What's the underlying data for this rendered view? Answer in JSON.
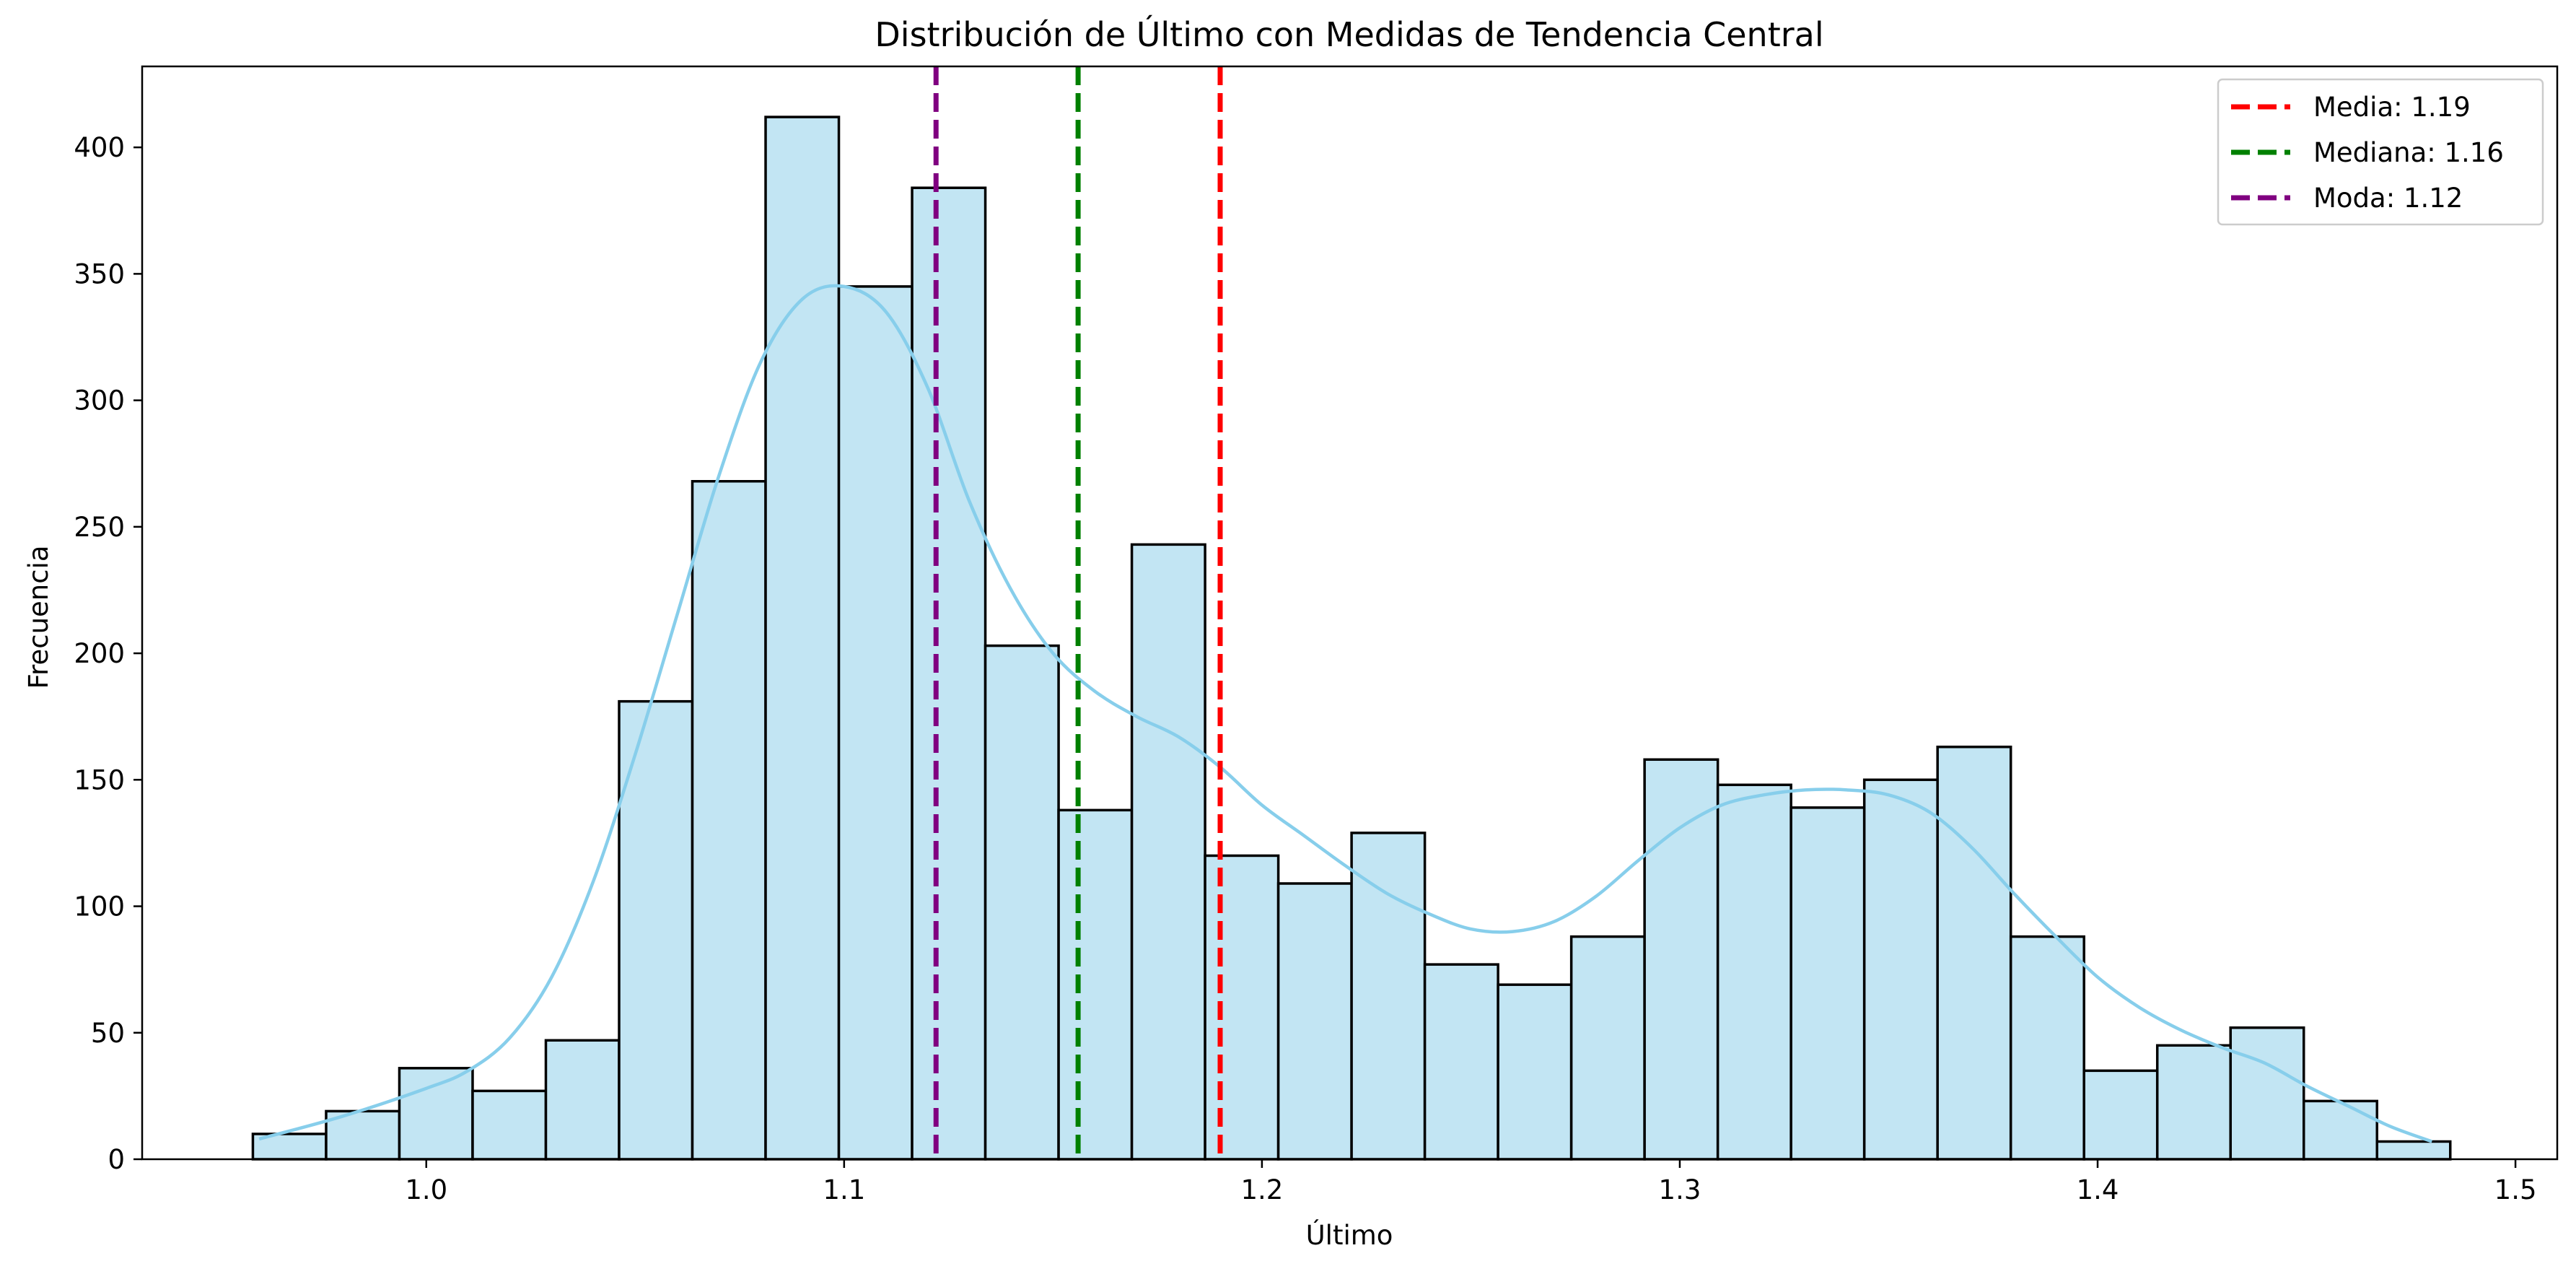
{
  "chart_data": {
    "type": "bar",
    "title": "Distribución de Último con Medidas de Tendencia Central",
    "xlabel": "Último",
    "ylabel": "Frecuencia",
    "xlim": [
      0.932,
      1.51
    ],
    "ylim": [
      0,
      432
    ],
    "xticks": [
      1.0,
      1.1,
      1.2,
      1.3,
      1.4,
      1.5
    ],
    "xtick_labels": [
      "1.0",
      "1.1",
      "1.2",
      "1.3",
      "1.4",
      "1.5"
    ],
    "yticks": [
      0,
      50,
      100,
      150,
      200,
      250,
      300,
      350,
      400
    ],
    "ytick_labels": [
      "0",
      "50",
      "100",
      "150",
      "200",
      "250",
      "300",
      "350",
      "400"
    ],
    "bins": {
      "start": 0.9585,
      "width": 0.01753,
      "counts": [
        10,
        19,
        36,
        27,
        47,
        181,
        268,
        412,
        345,
        384,
        203,
        138,
        243,
        120,
        109,
        129,
        77,
        69,
        88,
        158,
        148,
        139,
        150,
        163,
        88,
        35,
        45,
        52,
        23,
        7
      ]
    },
    "kde": {
      "x": [
        0.96,
        0.98,
        1.0,
        1.01,
        1.02,
        1.03,
        1.04,
        1.05,
        1.06,
        1.07,
        1.08,
        1.09,
        1.1,
        1.11,
        1.12,
        1.13,
        1.14,
        1.15,
        1.16,
        1.17,
        1.18,
        1.19,
        1.2,
        1.21,
        1.22,
        1.23,
        1.24,
        1.25,
        1.26,
        1.27,
        1.28,
        1.29,
        1.3,
        1.31,
        1.32,
        1.33,
        1.34,
        1.35,
        1.36,
        1.37,
        1.38,
        1.39,
        1.4,
        1.41,
        1.42,
        1.43,
        1.44,
        1.45,
        1.46,
        1.47,
        1.48
      ],
      "y": [
        8,
        17,
        28,
        35,
        48,
        72,
        110,
        160,
        215,
        270,
        315,
        340,
        345,
        335,
        305,
        260,
        225,
        200,
        185,
        175,
        167,
        155,
        140,
        128,
        116,
        105,
        97,
        91,
        90,
        94,
        104,
        118,
        131,
        140,
        144,
        146,
        146,
        144,
        137,
        123,
        105,
        88,
        72,
        60,
        51,
        44,
        38,
        29,
        21,
        13,
        7
      ],
      "color": "#87CEEB"
    },
    "bar_fill": "#C2E5F3",
    "vlines": [
      {
        "label": "Media: 1.19",
        "value": 1.19,
        "color": "#FF0000"
      },
      {
        "label": "Mediana: 1.16",
        "value": 1.156,
        "color": "#008000"
      },
      {
        "label": "Moda: 1.12",
        "value": 1.122,
        "color": "#800080"
      }
    ],
    "legend_position": "upper right"
  }
}
